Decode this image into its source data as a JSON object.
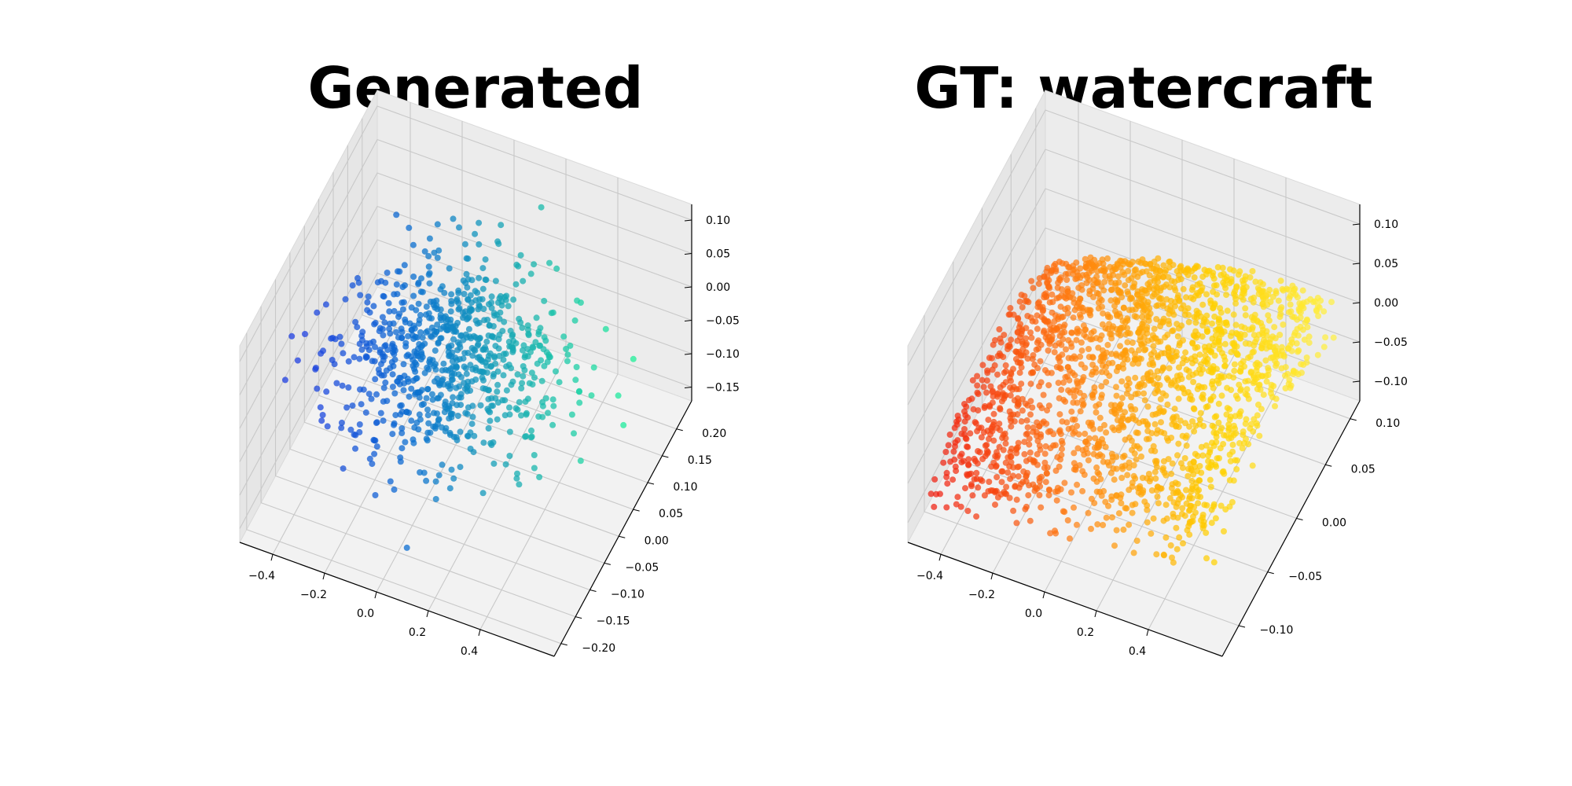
{
  "chart_data": [
    {
      "type": "scatter",
      "title": "Generated",
      "xlim": [
        -0.5,
        0.5
      ],
      "ylim": [
        -0.2,
        0.2
      ],
      "zlim": [
        -0.17,
        0.12
      ],
      "x_ticks": [
        "−0.4",
        "−0.2",
        "0.0",
        "0.2",
        "0.4"
      ],
      "y_ticks": [
        "−0.20",
        "−0.15",
        "−0.10",
        "−0.05",
        "0.00",
        "0.05",
        "0.10",
        "0.15",
        "0.20"
      ],
      "z_ticks": [
        "−0.15",
        "−0.10",
        "−0.05",
        "0.00",
        "0.05",
        "0.10"
      ],
      "grid": true,
      "colormap": [
        "#1f3fe0",
        "#0b6fd0",
        "#18b0b0",
        "#20f09a"
      ],
      "point_count": 800
    },
    {
      "type": "scatter",
      "title": "GT: watercraft",
      "xlim": [
        -0.5,
        0.5
      ],
      "ylim": [
        -0.12,
        0.12
      ],
      "zlim": [
        -0.12,
        0.12
      ],
      "x_ticks": [
        "−0.4",
        "−0.2",
        "0.0",
        "0.2",
        "0.4"
      ],
      "y_ticks": [
        "−0.10",
        "−0.05",
        "0.00",
        "0.05",
        "0.10"
      ],
      "z_ticks": [
        "−0.10",
        "−0.05",
        "0.00",
        "0.05",
        "0.10"
      ],
      "grid": true,
      "colormap": [
        "#f02010",
        "#ff8010",
        "#ffd000",
        "#fff44a"
      ],
      "point_count": 2048
    }
  ]
}
